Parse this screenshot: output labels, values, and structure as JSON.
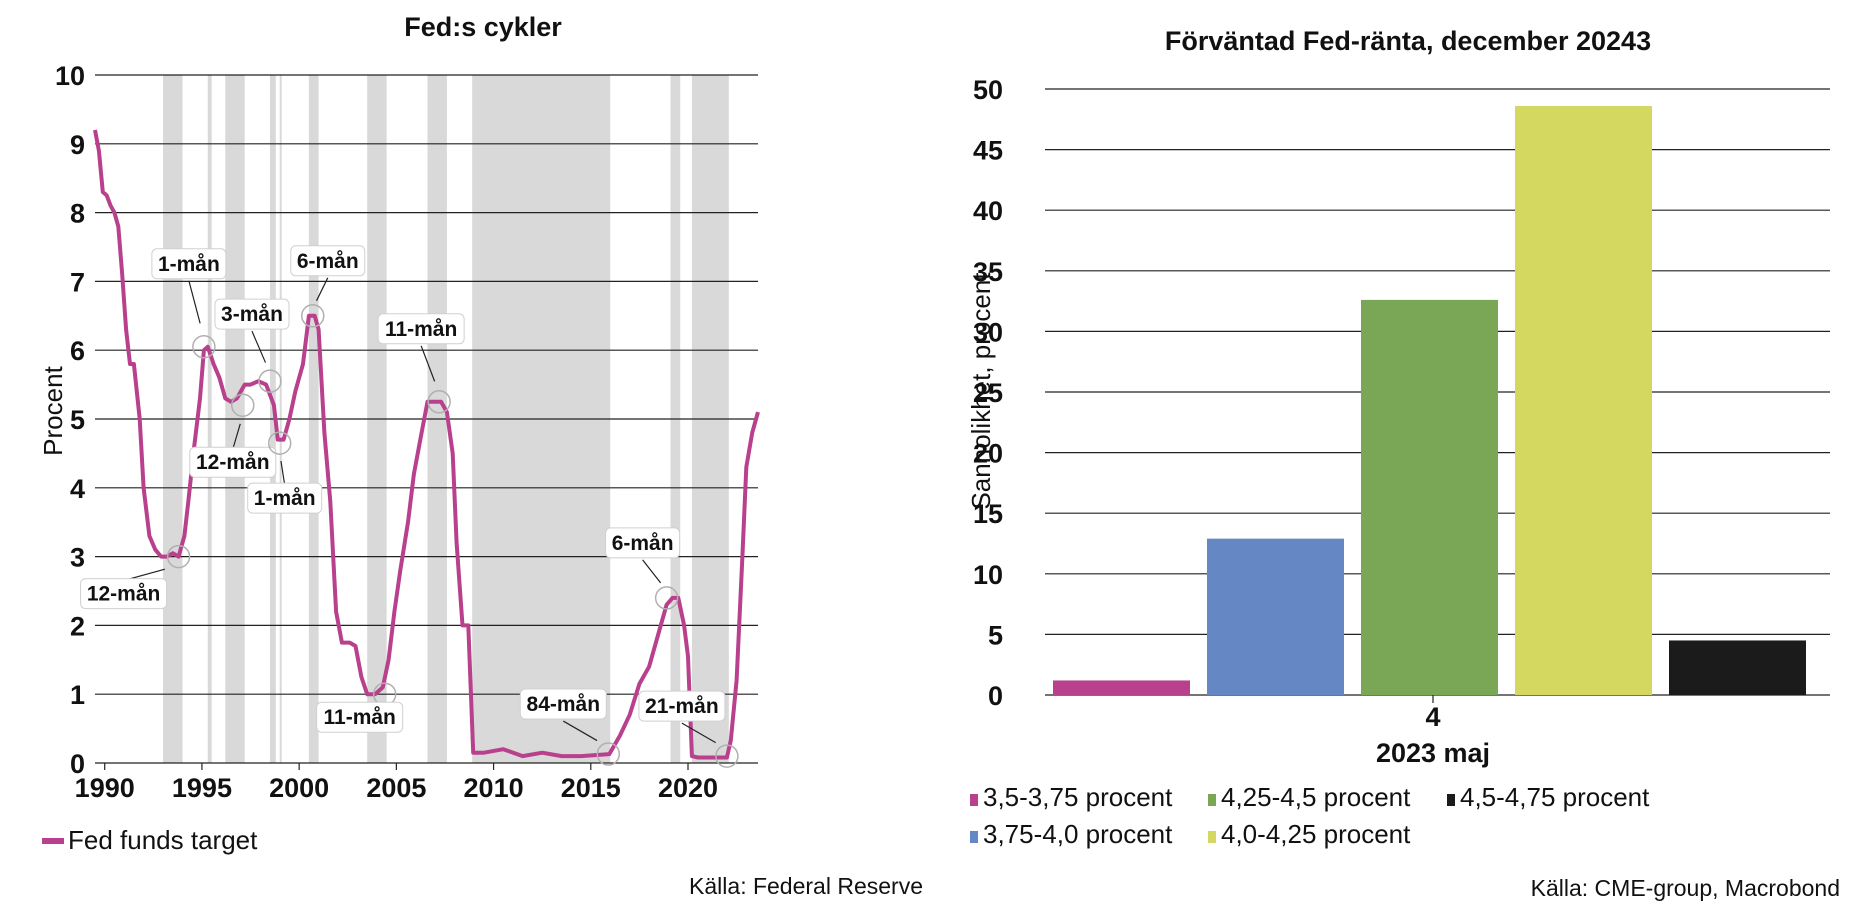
{
  "chart_data": [
    {
      "type": "line",
      "title": "Fed:s cykler",
      "ylabel": "Procent",
      "xlabel": "",
      "xlim": [
        1989.5,
        2023.6
      ],
      "ylim": [
        0,
        10
      ],
      "yticks": [
        "0",
        "1",
        "2",
        "3",
        "4",
        "5",
        "6",
        "7",
        "8",
        "9",
        "10"
      ],
      "xticks": [
        "1990",
        "1995",
        "2000",
        "2005",
        "2010",
        "2015",
        "2020"
      ],
      "grid": true,
      "legend_position": "bottom-left",
      "source": "Källa: Federal Reserve",
      "colors": {
        "line": "#b8408d",
        "shade": "#d9d9d9"
      },
      "series": [
        {
          "name": "Fed funds target",
          "x": [
            1989.5,
            1989.7,
            1989.9,
            1990.1,
            1990.3,
            1990.5,
            1990.7,
            1990.9,
            1991.1,
            1991.3,
            1991.5,
            1991.8,
            1992.0,
            1992.3,
            1992.6,
            1992.9,
            1993.2,
            1993.5,
            1993.8,
            1994.1,
            1994.3,
            1994.6,
            1994.9,
            1995.1,
            1995.3,
            1995.6,
            1995.9,
            1996.2,
            1996.5,
            1996.8,
            1997.2,
            1997.5,
            1997.9,
            1998.3,
            1998.7,
            1998.9,
            1999.2,
            1999.5,
            1999.8,
            2000.2,
            2000.5,
            2000.8,
            2001.0,
            2001.3,
            2001.6,
            2001.9,
            2002.2,
            2002.6,
            2002.9,
            2003.2,
            2003.5,
            2003.9,
            2004.3,
            2004.6,
            2004.9,
            2005.2,
            2005.6,
            2005.9,
            2006.3,
            2006.6,
            2006.9,
            2007.3,
            2007.6,
            2007.9,
            2008.1,
            2008.4,
            2008.7,
            2008.95,
            2009.5,
            2010.5,
            2011.5,
            2012.5,
            2013.5,
            2014.5,
            2015.5,
            2015.95,
            2016.5,
            2017.0,
            2017.5,
            2018.0,
            2018.5,
            2018.9,
            2019.2,
            2019.5,
            2019.8,
            2020.0,
            2020.2,
            2020.5,
            2021.0,
            2021.5,
            2022.0,
            2022.2,
            2022.5,
            2022.8,
            2023.0,
            2023.3,
            2023.6
          ],
          "y": [
            9.2,
            8.9,
            8.3,
            8.25,
            8.1,
            8.0,
            7.8,
            7.1,
            6.3,
            5.8,
            5.8,
            5.0,
            4.0,
            3.3,
            3.1,
            3.0,
            3.0,
            3.05,
            3.0,
            3.3,
            3.8,
            4.6,
            5.3,
            6.0,
            6.05,
            5.8,
            5.6,
            5.3,
            5.25,
            5.3,
            5.5,
            5.5,
            5.55,
            5.5,
            5.2,
            4.7,
            4.7,
            5.0,
            5.4,
            5.8,
            6.5,
            6.5,
            6.3,
            4.8,
            3.8,
            2.2,
            1.75,
            1.75,
            1.7,
            1.25,
            1.0,
            1.0,
            1.1,
            1.5,
            2.2,
            2.8,
            3.5,
            4.2,
            4.8,
            5.25,
            5.25,
            5.25,
            5.1,
            4.5,
            3.2,
            2.0,
            2.0,
            0.15,
            0.15,
            0.2,
            0.1,
            0.15,
            0.1,
            0.1,
            0.12,
            0.13,
            0.4,
            0.7,
            1.15,
            1.4,
            1.9,
            2.3,
            2.4,
            2.4,
            2.0,
            1.55,
            0.1,
            0.08,
            0.08,
            0.08,
            0.08,
            0.33,
            1.2,
            3.0,
            4.3,
            4.8,
            5.1
          ]
        }
      ],
      "shaded_periods": [
        [
          1993.0,
          1994.0
        ],
        [
          1995.3,
          1995.5
        ],
        [
          1996.2,
          1997.2
        ],
        [
          1998.5,
          1998.8
        ],
        [
          1999.0,
          1999.1
        ],
        [
          2000.5,
          2001.0
        ],
        [
          2003.5,
          2004.5
        ],
        [
          2006.6,
          2007.6
        ],
        [
          2008.9,
          2016.0
        ],
        [
          2019.1,
          2019.6
        ],
        [
          2020.2,
          2022.1
        ]
      ],
      "annotations": [
        {
          "label": "12-mån",
          "x": 1993.8,
          "y": 3.0
        },
        {
          "label": "1-mån",
          "x": 1995.1,
          "y": 6.05
        },
        {
          "label": "12-mån",
          "x": 1997.1,
          "y": 5.2
        },
        {
          "label": "3-mån",
          "x": 1998.5,
          "y": 5.55
        },
        {
          "label": "1-mån",
          "x": 1999.0,
          "y": 4.65
        },
        {
          "label": "6-mån",
          "x": 2000.7,
          "y": 6.5
        },
        {
          "label": "11-mån",
          "x": 2004.4,
          "y": 1.0
        },
        {
          "label": "11-mån",
          "x": 2007.2,
          "y": 5.25
        },
        {
          "label": "84-mån",
          "x": 2015.9,
          "y": 0.13
        },
        {
          "label": "6-mån",
          "x": 2018.9,
          "y": 2.4
        },
        {
          "label": "21-mån",
          "x": 2022.0,
          "y": 0.1
        }
      ]
    },
    {
      "type": "bar",
      "title": "Förväntad Fed-ränta, december 20243",
      "ylabel": "Sannolikhet, procent",
      "xlabel": "",
      "category_labels": [
        "4",
        "2023 maj"
      ],
      "ylim": [
        0,
        50
      ],
      "yticks": [
        "0",
        "5",
        "10",
        "15",
        "20",
        "25",
        "30",
        "35",
        "40",
        "45",
        "50"
      ],
      "grid": true,
      "legend_position": "bottom",
      "source": "Källa: CME-group, Macrobond",
      "series": [
        {
          "name": "3,5-3,75 procent",
          "value": 1.2,
          "color": "#b8408d"
        },
        {
          "name": "3,75-4,0 procent",
          "value": 12.9,
          "color": "#6588c4"
        },
        {
          "name": "4,25-4,5 procent",
          "value": 32.6,
          "color": "#79a755"
        },
        {
          "name": "4,0-4,25 procent",
          "value": 48.6,
          "color": "#d4d860"
        },
        {
          "name": "4,5-4,75 procent",
          "value": 4.5,
          "color": "#1b1b1b"
        }
      ]
    }
  ]
}
